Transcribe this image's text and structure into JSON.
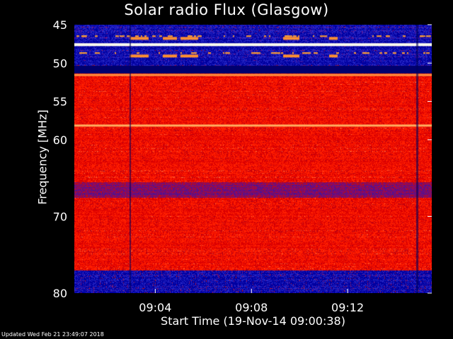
{
  "chart_data": {
    "type": "heatmap",
    "title": "Solar radio Flux (Glasgow)",
    "xlabel": "Start Time (19-Nov-14 09:00:38)",
    "ylabel": "Frequency [MHz]",
    "ylim": [
      45,
      80
    ],
    "y_inverted": true,
    "y_ticks": [
      45,
      50,
      55,
      60,
      70,
      80
    ],
    "x_ticks": [
      "09:04",
      "09:08",
      "09:12"
    ],
    "x_start": "09:00:38",
    "x_end": "09:15:30",
    "colormap": [
      "#0000a0",
      "#3333cc",
      "#8a0a8a",
      "#cc0000",
      "#ff2000",
      "#ff8040",
      "#ffff80"
    ],
    "features": [
      {
        "type": "bright-line",
        "frequency_mhz": 47.6,
        "color": "#fffff0"
      },
      {
        "type": "orange-line",
        "frequency_mhz": 51.6,
        "color": "#ff9040"
      },
      {
        "type": "orange-line",
        "frequency_mhz": 58.2,
        "color": "#ffb060"
      },
      {
        "type": "blue-band",
        "range_mhz": [
          45,
          51.2
        ]
      },
      {
        "type": "red-band",
        "range_mhz": [
          51.8,
          65.5
        ]
      },
      {
        "type": "purple-band",
        "range_mhz": [
          65.5,
          67.5
        ]
      },
      {
        "type": "red-band",
        "range_mhz": [
          67.5,
          77
        ]
      },
      {
        "type": "blue-band",
        "range_mhz": [
          77,
          80
        ]
      }
    ]
  },
  "footer": {
    "updated": "Updated Wed Feb 21 23:49:07 2018"
  }
}
